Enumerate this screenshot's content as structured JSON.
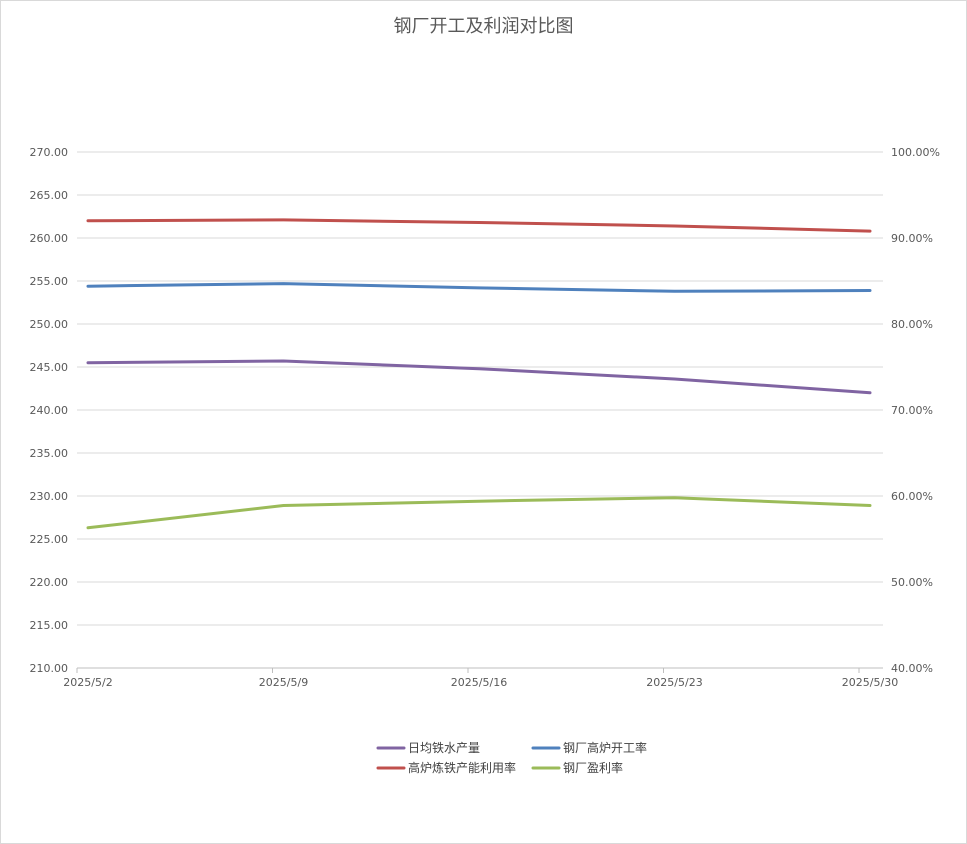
{
  "chart_data": {
    "type": "line",
    "title": "钢厂开工及利润对比图",
    "categories": [
      "2025/5/2",
      "2025/5/9",
      "2025/5/16",
      "2025/5/23",
      "2025/5/30"
    ],
    "left_axis": {
      "min": 210,
      "max": 270,
      "step": 5,
      "ticks": [
        "210.00",
        "215.00",
        "220.00",
        "225.00",
        "230.00",
        "235.00",
        "240.00",
        "245.00",
        "250.00",
        "255.00",
        "260.00",
        "265.00",
        "270.00"
      ]
    },
    "right_axis": {
      "min": 40,
      "max": 100,
      "step": 10,
      "ticks": [
        "40.00%",
        "50.00%",
        "60.00%",
        "70.00%",
        "80.00%",
        "90.00%",
        "100.00%"
      ]
    },
    "grid": true,
    "legend_position": "bottom",
    "series": [
      {
        "name": "日均铁水产量",
        "axis": "left",
        "color": "#8064a2",
        "values": [
          245.5,
          245.7,
          244.8,
          243.6,
          242.0
        ]
      },
      {
        "name": "钢厂高炉开工率",
        "axis": "right",
        "color": "#4f81bd",
        "values": [
          84.4,
          84.7,
          84.2,
          83.8,
          83.9
        ]
      },
      {
        "name": "高炉炼铁产能利用率",
        "axis": "right",
        "color": "#c0504d",
        "values": [
          92.0,
          92.1,
          91.8,
          91.4,
          90.8
        ]
      },
      {
        "name": "钢厂盈利率",
        "axis": "right",
        "color": "#9bbb59",
        "values": [
          56.3,
          58.9,
          59.4,
          59.8,
          58.9
        ]
      }
    ]
  }
}
